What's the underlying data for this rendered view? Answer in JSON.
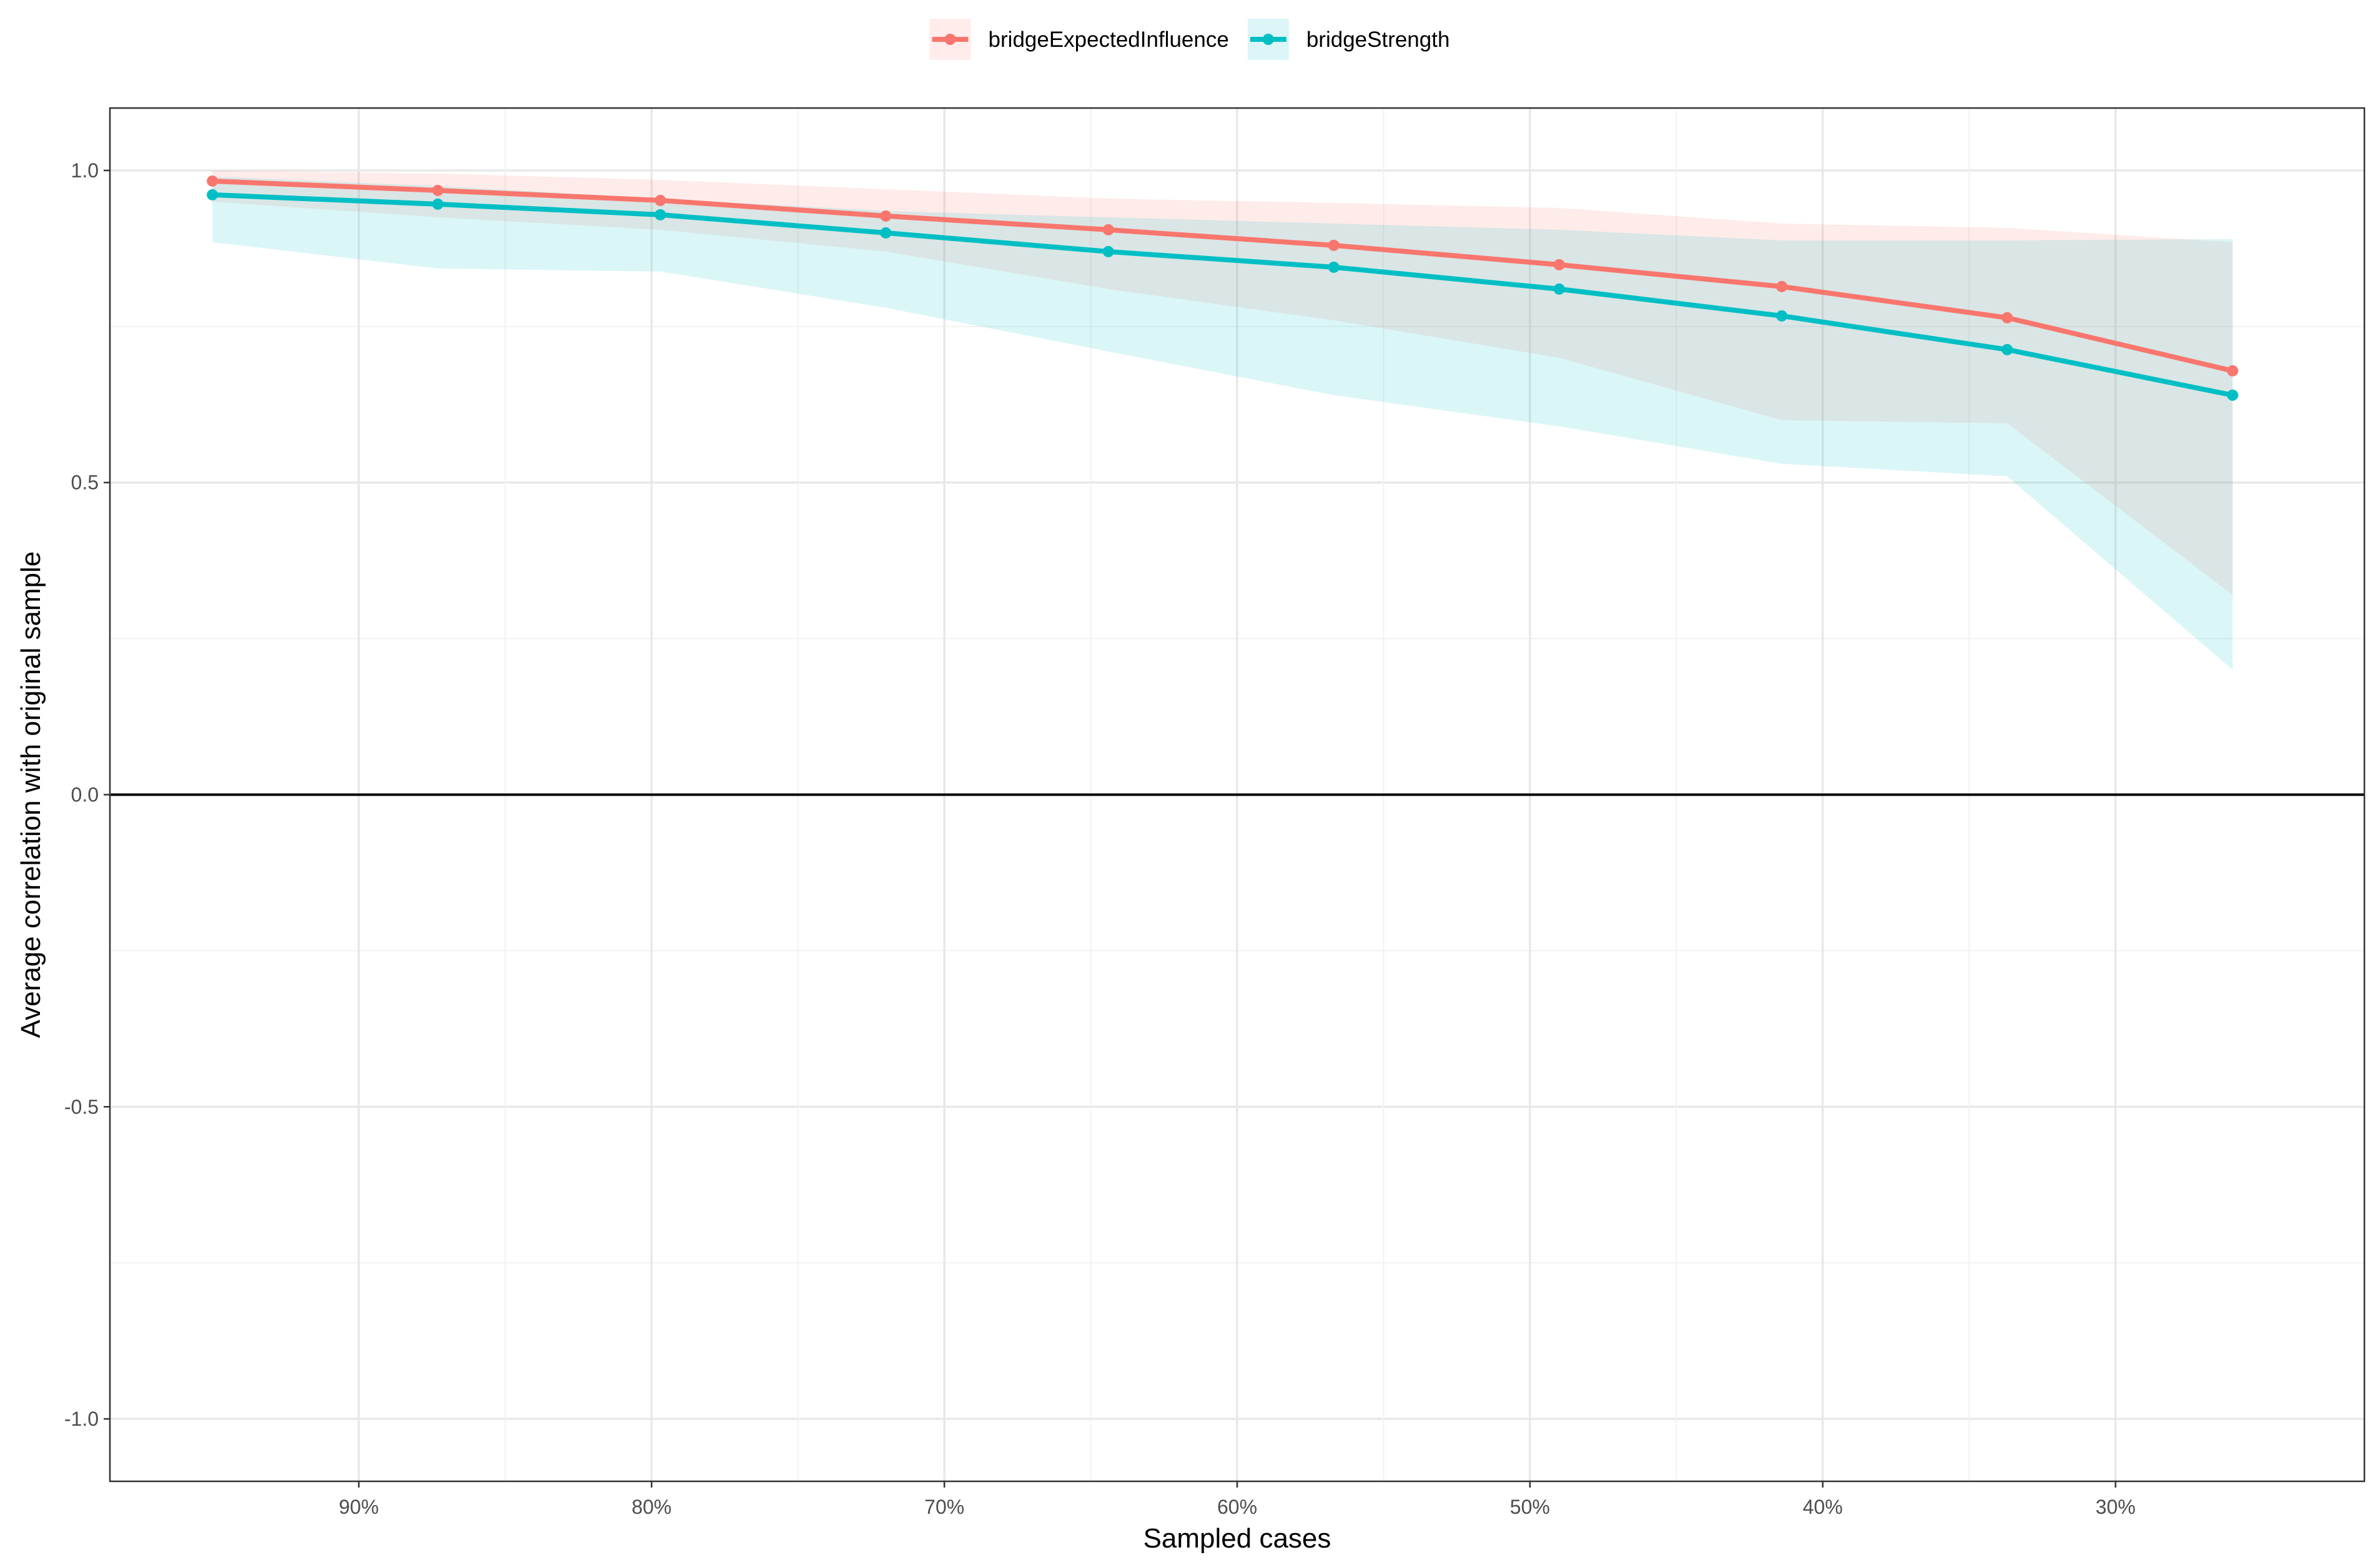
{
  "chart_data": {
    "type": "line",
    "xlabel": "Sampled cases",
    "ylabel": "Average correlation with original sample",
    "x": [
      0.95,
      0.873,
      0.797,
      0.72,
      0.644,
      0.567,
      0.49,
      0.414,
      0.337,
      0.26
    ],
    "x_ticks": [
      0.9,
      0.8,
      0.7,
      0.6,
      0.5,
      0.4,
      0.3
    ],
    "x_tick_labels": [
      "90%",
      "80%",
      "70%",
      "60%",
      "50%",
      "40%",
      "30%"
    ],
    "xlim": [
      0.985,
      0.215
    ],
    "x_reversed": true,
    "y_ticks": [
      -1.0,
      -0.5,
      0.0,
      0.5,
      1.0
    ],
    "y_tick_labels": [
      "-1.0",
      "-0.5",
      "0.0",
      "0.5",
      "1.0"
    ],
    "ylim": [
      -1.1,
      1.1
    ],
    "hline": 0,
    "grid": true,
    "legend_position": "top",
    "series": [
      {
        "name": "bridgeExpectedInfluence",
        "color": "#F8766D",
        "ribbon_color": "#FFECEB",
        "values": [
          0.983,
          0.968,
          0.952,
          0.927,
          0.905,
          0.88,
          0.849,
          0.814,
          0.764,
          0.679
        ],
        "upper": [
          1.0,
          0.995,
          0.985,
          0.97,
          0.955,
          0.948,
          0.94,
          0.915,
          0.908,
          0.885
        ],
        "lower": [
          0.95,
          0.925,
          0.905,
          0.87,
          0.81,
          0.76,
          0.7,
          0.6,
          0.595,
          0.32
        ]
      },
      {
        "name": "bridgeStrength",
        "color": "#00BFC4",
        "ribbon_color": "#DCF5F6",
        "values": [
          0.961,
          0.946,
          0.929,
          0.9,
          0.87,
          0.845,
          0.81,
          0.767,
          0.713,
          0.64
        ],
        "upper": [
          0.99,
          0.975,
          0.955,
          0.935,
          0.925,
          0.915,
          0.905,
          0.888,
          0.888,
          0.89
        ],
        "lower": [
          0.885,
          0.843,
          0.838,
          0.78,
          0.71,
          0.64,
          0.59,
          0.53,
          0.51,
          0.2
        ]
      }
    ]
  }
}
